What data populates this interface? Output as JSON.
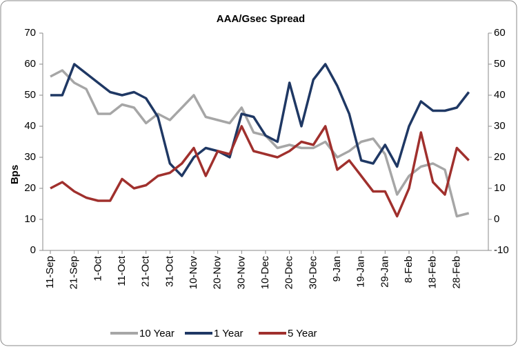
{
  "chart_data": {
    "type": "line",
    "title": "AAA/Gsec Spread",
    "y_label": "Bps",
    "categories": [
      "11-Sep",
      null,
      "21-Sep",
      null,
      "1-Oct",
      null,
      "11-Oct",
      null,
      "21-Oct",
      null,
      "31-Oct",
      null,
      "10-Nov",
      null,
      "20-Nov",
      null,
      "30-Nov",
      null,
      "10-Dec",
      null,
      "20-Dec",
      null,
      "30-Dec",
      null,
      "9-Jan",
      null,
      "19-Jan",
      null,
      "29-Jan",
      null,
      "8-Feb",
      null,
      "18-Feb",
      null,
      "28-Feb",
      null
    ],
    "series": [
      {
        "name": "10 Year",
        "color": "#a6a6a6",
        "axis": "y",
        "values": [
          56,
          58,
          54,
          52,
          44,
          44,
          47,
          46,
          41,
          44,
          42,
          46,
          50,
          43,
          42,
          41,
          46,
          38,
          37,
          33,
          34,
          33,
          33,
          35,
          30,
          32,
          35,
          36,
          31,
          18,
          24,
          27,
          28,
          26,
          11,
          12
        ]
      },
      {
        "name": "1 Year",
        "color": "#1f3864",
        "axis": "y2",
        "values": [
          40,
          40,
          50,
          47,
          44,
          41,
          40,
          41,
          39,
          33,
          18,
          14,
          20,
          23,
          22,
          20,
          34,
          33,
          27,
          25,
          44,
          30,
          45,
          50,
          43,
          34,
          19,
          18,
          24,
          17,
          30,
          38,
          35,
          35,
          36,
          41
        ]
      },
      {
        "name": "5 Year",
        "color": "#a0302d",
        "axis": "y2",
        "values": [
          10,
          12,
          9,
          7,
          6,
          6,
          13,
          10,
          11,
          14,
          15,
          18,
          23,
          14,
          22,
          21,
          30,
          22,
          21,
          20,
          22,
          25,
          24,
          30,
          16,
          19,
          14,
          9,
          9,
          1,
          10,
          28,
          12,
          8,
          23,
          19
        ]
      }
    ],
    "ylim": [
      0,
      70
    ],
    "yticks": [
      0,
      10,
      20,
      30,
      40,
      50,
      60,
      70
    ],
    "y2lim": [
      -10,
      60
    ],
    "y2ticks": [
      -10,
      0,
      10,
      20,
      30,
      40,
      50,
      60
    ],
    "grid": false,
    "legend": "bottom"
  }
}
